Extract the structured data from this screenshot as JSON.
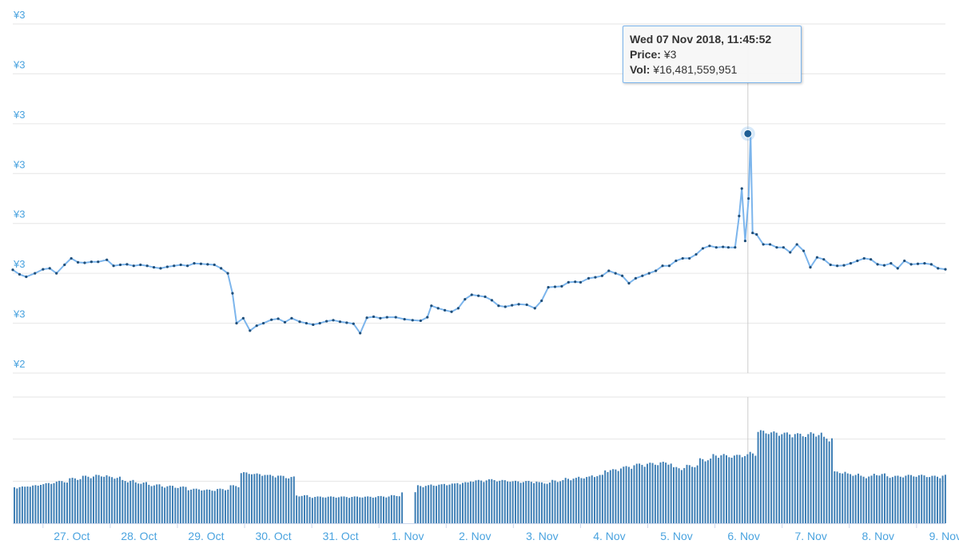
{
  "chart_data": {
    "type": "line",
    "currency_symbol": "¥",
    "price_axis": {
      "tick_labels": [
        "¥3",
        "¥3",
        "¥3",
        "¥3",
        "¥3",
        "¥3",
        "¥3",
        "¥2"
      ],
      "tick_values": [
        3.6,
        3.5,
        3.4,
        3.3,
        3.2,
        3.1,
        3.0,
        2.9
      ],
      "ylim": [
        2.9,
        3.6
      ]
    },
    "x_axis": {
      "tick_labels": [
        "27. Oct",
        "28. Oct",
        "29. Oct",
        "30. Oct",
        "31. Oct",
        "1. Nov",
        "2. Nov",
        "3. Nov",
        "4. Nov",
        "5. Nov",
        "6. Nov",
        "7. Nov",
        "8. Nov",
        "9. Nov"
      ],
      "xlim_days": [
        26.55,
        40.43
      ]
    },
    "grid": true,
    "legend": "none",
    "series": [
      {
        "type": "line",
        "color": "#7cb5ec",
        "points": [
          [
            26.55,
            3.107
          ],
          [
            26.65,
            3.098
          ],
          [
            26.75,
            3.093
          ],
          [
            26.88,
            3.1
          ],
          [
            27.0,
            3.108
          ],
          [
            27.1,
            3.11
          ],
          [
            27.2,
            3.1
          ],
          [
            27.32,
            3.117
          ],
          [
            27.42,
            3.13
          ],
          [
            27.52,
            3.122
          ],
          [
            27.62,
            3.121
          ],
          [
            27.72,
            3.123
          ],
          [
            27.82,
            3.123
          ],
          [
            27.95,
            3.127
          ],
          [
            28.05,
            3.115
          ],
          [
            28.15,
            3.117
          ],
          [
            28.25,
            3.118
          ],
          [
            28.35,
            3.115
          ],
          [
            28.45,
            3.117
          ],
          [
            28.55,
            3.115
          ],
          [
            28.65,
            3.112
          ],
          [
            28.75,
            3.11
          ],
          [
            28.85,
            3.113
          ],
          [
            28.95,
            3.115
          ],
          [
            29.05,
            3.117
          ],
          [
            29.15,
            3.115
          ],
          [
            29.25,
            3.12
          ],
          [
            29.35,
            3.119
          ],
          [
            29.45,
            3.118
          ],
          [
            29.55,
            3.117
          ],
          [
            29.65,
            3.11
          ],
          [
            29.75,
            3.1
          ],
          [
            29.82,
            3.06
          ],
          [
            29.88,
            3.0
          ],
          [
            29.98,
            3.01
          ],
          [
            30.08,
            2.985
          ],
          [
            30.18,
            2.995
          ],
          [
            30.28,
            3.0
          ],
          [
            30.4,
            3.007
          ],
          [
            30.5,
            3.009
          ],
          [
            30.6,
            3.002
          ],
          [
            30.7,
            3.01
          ],
          [
            30.82,
            3.003
          ],
          [
            30.92,
            3.0
          ],
          [
            31.02,
            2.997
          ],
          [
            31.12,
            3.0
          ],
          [
            31.22,
            3.004
          ],
          [
            31.32,
            3.006
          ],
          [
            31.42,
            3.003
          ],
          [
            31.52,
            3.001
          ],
          [
            31.62,
            2.999
          ],
          [
            31.72,
            2.98
          ],
          [
            31.82,
            3.011
          ],
          [
            31.92,
            3.013
          ],
          [
            32.02,
            3.01
          ],
          [
            32.12,
            3.012
          ],
          [
            32.25,
            3.012
          ],
          [
            32.38,
            3.008
          ],
          [
            32.5,
            3.006
          ],
          [
            32.62,
            3.005
          ],
          [
            32.72,
            3.012
          ],
          [
            32.78,
            3.035
          ],
          [
            32.88,
            3.03
          ],
          [
            32.98,
            3.026
          ],
          [
            33.08,
            3.023
          ],
          [
            33.18,
            3.03
          ],
          [
            33.28,
            3.048
          ],
          [
            33.38,
            3.057
          ],
          [
            33.48,
            3.055
          ],
          [
            33.58,
            3.053
          ],
          [
            33.68,
            3.046
          ],
          [
            33.78,
            3.035
          ],
          [
            33.88,
            3.033
          ],
          [
            33.98,
            3.036
          ],
          [
            34.08,
            3.038
          ],
          [
            34.2,
            3.037
          ],
          [
            34.32,
            3.03
          ],
          [
            34.42,
            3.045
          ],
          [
            34.52,
            3.072
          ],
          [
            34.62,
            3.073
          ],
          [
            34.72,
            3.074
          ],
          [
            34.82,
            3.082
          ],
          [
            34.92,
            3.083
          ],
          [
            35.0,
            3.082
          ],
          [
            35.12,
            3.09
          ],
          [
            35.22,
            3.092
          ],
          [
            35.32,
            3.095
          ],
          [
            35.42,
            3.105
          ],
          [
            35.52,
            3.1
          ],
          [
            35.62,
            3.095
          ],
          [
            35.72,
            3.08
          ],
          [
            35.82,
            3.09
          ],
          [
            35.92,
            3.095
          ],
          [
            36.02,
            3.1
          ],
          [
            36.12,
            3.105
          ],
          [
            36.22,
            3.115
          ],
          [
            36.32,
            3.115
          ],
          [
            36.42,
            3.125
          ],
          [
            36.52,
            3.13
          ],
          [
            36.62,
            3.13
          ],
          [
            36.72,
            3.138
          ],
          [
            36.82,
            3.15
          ],
          [
            36.92,
            3.155
          ],
          [
            37.02,
            3.152
          ],
          [
            37.12,
            3.153
          ],
          [
            37.2,
            3.152
          ],
          [
            37.3,
            3.152
          ],
          [
            37.36,
            3.215
          ],
          [
            37.4,
            3.27
          ],
          [
            37.45,
            3.165
          ],
          [
            37.5,
            3.25
          ],
          [
            37.53,
            3.38
          ],
          [
            37.56,
            3.181
          ],
          [
            37.62,
            3.178
          ],
          [
            37.72,
            3.158
          ],
          [
            37.82,
            3.158
          ],
          [
            37.92,
            3.152
          ],
          [
            38.02,
            3.152
          ],
          [
            38.12,
            3.142
          ],
          [
            38.22,
            3.158
          ],
          [
            38.32,
            3.145
          ],
          [
            38.42,
            3.112
          ],
          [
            38.52,
            3.132
          ],
          [
            38.62,
            3.128
          ],
          [
            38.72,
            3.117
          ],
          [
            38.82,
            3.115
          ],
          [
            38.92,
            3.116
          ],
          [
            39.02,
            3.12
          ],
          [
            39.12,
            3.125
          ],
          [
            39.22,
            3.13
          ],
          [
            39.32,
            3.128
          ],
          [
            39.42,
            3.118
          ],
          [
            39.52,
            3.116
          ],
          [
            39.62,
            3.12
          ],
          [
            39.72,
            3.11
          ],
          [
            39.82,
            3.125
          ],
          [
            39.92,
            3.118
          ],
          [
            40.02,
            3.119
          ],
          [
            40.12,
            3.12
          ],
          [
            40.22,
            3.118
          ],
          [
            40.32,
            3.11
          ],
          [
            40.43,
            3.108
          ]
        ]
      },
      {
        "type": "column",
        "name": "Vol",
        "color": "#3f7fb5",
        "ylim": [
          0,
          3
        ],
        "bins": [
          [
            26.55,
            0.85
          ],
          [
            26.75,
            0.88
          ],
          [
            26.95,
            0.93
          ],
          [
            27.15,
            0.98
          ],
          [
            27.35,
            1.05
          ],
          [
            27.55,
            1.1
          ],
          [
            27.75,
            1.12
          ],
          [
            27.95,
            1.08
          ],
          [
            28.15,
            1.0
          ],
          [
            28.35,
            0.95
          ],
          [
            28.55,
            0.9
          ],
          [
            28.75,
            0.87
          ],
          [
            28.95,
            0.85
          ],
          [
            29.15,
            0.8
          ],
          [
            29.35,
            0.78
          ],
          [
            29.55,
            0.8
          ],
          [
            29.75,
            0.88
          ],
          [
            29.9,
            1.18
          ],
          [
            30.1,
            1.15
          ],
          [
            30.3,
            1.12
          ],
          [
            30.5,
            1.1
          ],
          [
            30.6,
            1.08
          ],
          [
            30.75,
            0.65
          ],
          [
            30.95,
            0.62
          ],
          [
            31.15,
            0.62
          ],
          [
            31.35,
            0.62
          ],
          [
            31.55,
            0.62
          ],
          [
            31.75,
            0.62
          ],
          [
            31.95,
            0.63
          ],
          [
            32.15,
            0.65
          ],
          [
            32.3,
            0.72
          ],
          [
            32.55,
            0.88
          ],
          [
            32.75,
            0.9
          ],
          [
            32.95,
            0.92
          ],
          [
            33.15,
            0.95
          ],
          [
            33.35,
            1.0
          ],
          [
            33.55,
            1.02
          ],
          [
            33.75,
            1.0
          ],
          [
            33.95,
            0.98
          ],
          [
            34.15,
            0.98
          ],
          [
            34.35,
            0.95
          ],
          [
            34.55,
            1.0
          ],
          [
            34.75,
            1.05
          ],
          [
            34.95,
            1.08
          ],
          [
            35.15,
            1.12
          ],
          [
            35.35,
            1.25
          ],
          [
            35.55,
            1.32
          ],
          [
            35.75,
            1.38
          ],
          [
            35.95,
            1.4
          ],
          [
            36.15,
            1.42
          ],
          [
            36.35,
            1.3
          ],
          [
            36.55,
            1.35
          ],
          [
            36.75,
            1.5
          ],
          [
            36.95,
            1.6
          ],
          [
            37.15,
            1.58
          ],
          [
            37.35,
            1.6
          ],
          [
            37.5,
            1.65
          ],
          [
            37.6,
            2.15
          ],
          [
            37.8,
            2.12
          ],
          [
            38.0,
            2.1
          ],
          [
            38.2,
            2.08
          ],
          [
            38.4,
            2.1
          ],
          [
            38.6,
            2.0
          ],
          [
            38.75,
            1.2
          ],
          [
            38.95,
            1.15
          ],
          [
            39.15,
            1.1
          ],
          [
            39.35,
            1.15
          ],
          [
            39.55,
            1.1
          ],
          [
            39.75,
            1.12
          ],
          [
            39.95,
            1.12
          ],
          [
            40.15,
            1.1
          ],
          [
            40.35,
            1.12
          ],
          [
            40.43,
            1.12
          ]
        ]
      }
    ],
    "tooltip": {
      "header": "Wed 07 Nov 2018, 11:45:52",
      "price_label": "Price:",
      "price_value": "¥3",
      "vol_label": "Vol:",
      "vol_value": "¥16,481,559,951",
      "x": 37.49,
      "y": 3.38
    }
  }
}
